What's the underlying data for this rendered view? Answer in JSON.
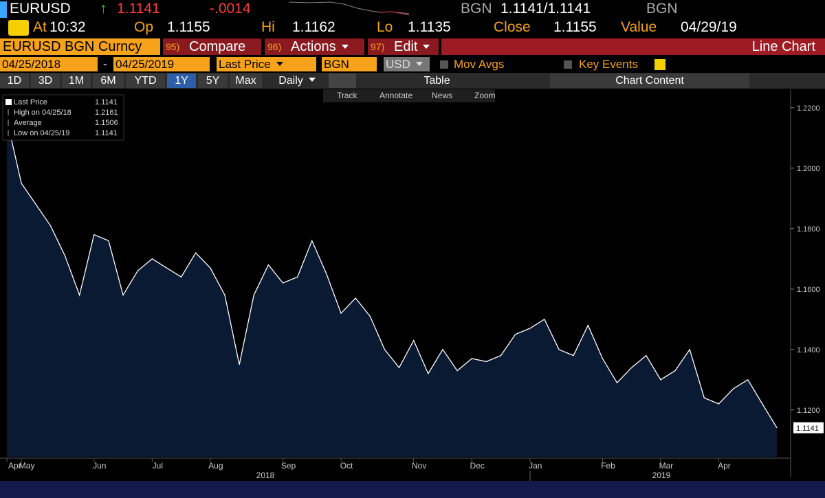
{
  "header": {
    "symbol": "EURUSD",
    "arrow": "↑",
    "last": "1.1141",
    "change": "-.0014",
    "bid_source": "BGN",
    "quote": "1.1141/1.1141",
    "ask_source": "BGN",
    "stats": [
      [
        "At",
        "10:32"
      ],
      [
        "Op",
        "1.1155"
      ],
      [
        "Hi",
        "1.1162"
      ],
      [
        "Lo",
        "1.1135"
      ],
      [
        "Close",
        "1.1155"
      ],
      [
        "Value",
        "04/29/19"
      ]
    ]
  },
  "toolbar": {
    "security": "EURUSD BGN Curncy",
    "buttons": [
      {
        "num": "95)",
        "label": "Compare"
      },
      {
        "num": "96)",
        "label": "Actions"
      },
      {
        "num": "97)",
        "label": "Edit"
      }
    ],
    "view": "Line Chart"
  },
  "settings": {
    "start": "04/25/2018",
    "dash": "-",
    "end": "04/25/2019",
    "field": "Last Price",
    "source": "BGN",
    "currency": "USD",
    "mov_avgs": "Mov Avgs",
    "key_events": "Key Events"
  },
  "tabs": {
    "periods": [
      "1D",
      "3D",
      "1M",
      "6M",
      "YTD",
      "1Y",
      "5Y",
      "Max"
    ],
    "selected": "1Y",
    "frequency": "Daily",
    "table": "Table",
    "content": "Chart Content"
  },
  "tools": [
    "Track",
    "Annotate",
    "News",
    "Zoom"
  ],
  "chart_data": {
    "type": "line",
    "categories": [
      "Apr",
      "May",
      null,
      null,
      null,
      null,
      "Jun",
      null,
      null,
      null,
      "Jul",
      null,
      null,
      null,
      "Aug",
      null,
      null,
      null,
      null,
      "Sep",
      null,
      null,
      null,
      "Oct",
      null,
      null,
      null,
      null,
      "Nov",
      null,
      null,
      null,
      "Dec",
      null,
      null,
      null,
      "Jan",
      null,
      null,
      null,
      null,
      "Feb",
      null,
      null,
      null,
      "Mar",
      null,
      null,
      null,
      "Apr",
      null,
      null,
      null,
      null
    ],
    "series": [
      {
        "name": "Last Price",
        "color": "#ffffff",
        "values": [
          1.2161,
          1.195,
          1.188,
          1.181,
          1.171,
          1.158,
          1.178,
          1.176,
          1.158,
          1.166,
          1.17,
          1.167,
          1.164,
          1.172,
          1.167,
          1.158,
          1.135,
          1.158,
          1.168,
          1.162,
          1.164,
          1.176,
          1.165,
          1.152,
          1.157,
          1.151,
          1.14,
          1.134,
          1.143,
          1.132,
          1.14,
          1.133,
          1.137,
          1.136,
          1.138,
          1.145,
          1.147,
          1.15,
          1.14,
          1.138,
          1.148,
          1.137,
          1.129,
          1.134,
          1.138,
          1.13,
          1.133,
          1.14,
          1.124,
          1.122,
          1.127,
          1.13,
          1.122,
          1.1141
        ]
      }
    ],
    "area_color": "#0b1a33",
    "year_labels": [
      "2018",
      "2019"
    ],
    "legend_stats": [
      {
        "label": "Last Price",
        "value": "1.1141"
      },
      {
        "label": "High on 04/25/18",
        "value": "1.2161"
      },
      {
        "label": "Average",
        "value": "1.1506"
      },
      {
        "label": "Low on 04/25/19",
        "value": "1.1141"
      }
    ],
    "ylim": [
      1.1045,
      1.2261
    ],
    "yticks": [
      {
        "value": 1.12,
        "label": "1.1200"
      },
      {
        "value": 1.14,
        "label": "1.1400"
      },
      {
        "value": 1.16,
        "label": "1.1600"
      },
      {
        "value": 1.18,
        "label": "1.1800"
      },
      {
        "value": 1.2,
        "label": "1.2000"
      },
      {
        "value": 1.22,
        "label": "1.2200"
      }
    ],
    "grid": false
  }
}
